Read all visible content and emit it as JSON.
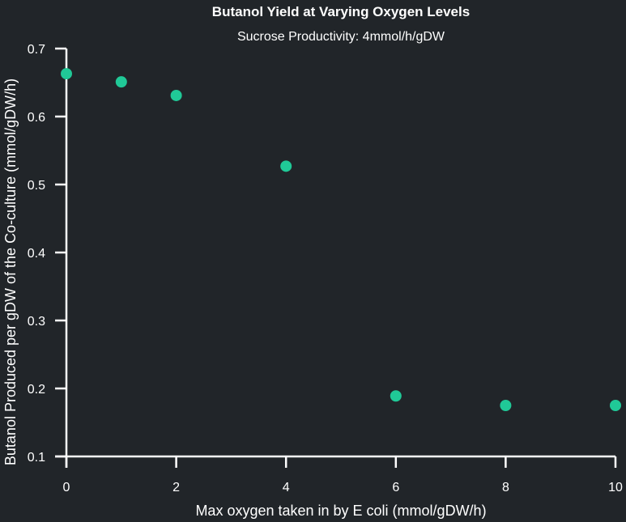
{
  "chart_data": {
    "type": "scatter",
    "title": "Butanol Yield at Varying Oxygen Levels",
    "subtitle": "Sucrose Productivity: 4mmol/h/gDW",
    "xlabel": "Max oxygen taken in by E coli (mmol/gDW/h)",
    "ylabel": "Butanol Produced per gDW of the Co-culture (mmol/gDW/h)",
    "xlim": [
      0,
      10
    ],
    "ylim": [
      0.1,
      0.7
    ],
    "xticks": [
      "0",
      "2",
      "4",
      "6",
      "8",
      "10"
    ],
    "yticks": [
      "0.1",
      "0.2",
      "0.3",
      "0.4",
      "0.5",
      "0.6",
      "0.7"
    ],
    "x": [
      0,
      1,
      2,
      4,
      6,
      8,
      10
    ],
    "y": [
      0.663,
      0.651,
      0.631,
      0.527,
      0.189,
      0.175,
      0.175
    ],
    "grid": false,
    "colors": {
      "background": "#212529",
      "axis": "#ffffff",
      "text": "#ffffff",
      "marker": "#20c997"
    }
  }
}
